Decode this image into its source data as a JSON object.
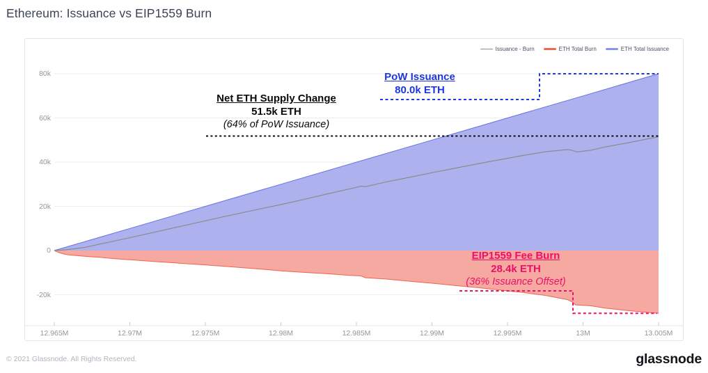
{
  "page": {
    "title": "Ethereum: Issuance vs EIP1559 Burn",
    "footer_copyright": "© 2021 Glassnode. All Rights Reserved.",
    "brand": "glassnode"
  },
  "legend": {
    "position": "top-right",
    "items": [
      {
        "label": "Issuance - Burn",
        "color": "#8b8b8b",
        "thickness": 1
      },
      {
        "label": "ETH Total Burn",
        "color": "#f4664f",
        "thickness": 3
      },
      {
        "label": "ETH Total Issuance",
        "color": "#8a93ee",
        "thickness": 3
      }
    ]
  },
  "annotations": {
    "pow": {
      "title": "PoW Issuance",
      "value": "80.0k ETH",
      "note": "",
      "color": "#1b36e2",
      "level_k_eth": 80.0
    },
    "net": {
      "title": "Net ETH Supply Change",
      "value": "51.5k ETH",
      "note": "(64% of PoW Issuance)",
      "color": "#0a0a0a",
      "level_k_eth": 51.5
    },
    "burn": {
      "title": "EIP1559 Fee Burn",
      "value": "28.4k ETH",
      "note": "(36% Issuance Offset)",
      "color": "#ee0f68",
      "level_k_eth": -28.4
    }
  },
  "chart_data": {
    "type": "area",
    "title": "Ethereum: Issuance vs EIP1559 Burn",
    "xlabel": "",
    "ylabel": "",
    "grid": "horizontal",
    "legend_position": "top-right",
    "x_axis": {
      "tick_labels": [
        "12.965M",
        "12.97M",
        "12.975M",
        "12.98M",
        "12.985M",
        "12.99M",
        "12.995M",
        "13M",
        "13.005M"
      ],
      "tick_values": [
        12.965,
        12.97,
        12.975,
        12.98,
        12.985,
        12.99,
        12.995,
        13.0,
        13.005
      ],
      "range": [
        12.965,
        13.005
      ]
    },
    "y_axis": {
      "tick_labels": [
        "80k",
        "60k",
        "40k",
        "20k",
        "0",
        "-20k"
      ],
      "tick_values": [
        80,
        60,
        40,
        20,
        0,
        -20
      ],
      "range": [
        -34,
        91
      ],
      "unit": "k ETH"
    },
    "series": [
      {
        "name": "ETH Total Issuance",
        "type": "area",
        "line_color": "#6672e4",
        "fill_color": "#adb2ef",
        "points": [
          [
            12.965,
            0
          ],
          [
            12.97,
            10
          ],
          [
            12.975,
            20
          ],
          [
            12.98,
            30
          ],
          [
            12.985,
            40
          ],
          [
            12.99,
            50
          ],
          [
            12.995,
            60
          ],
          [
            13.0,
            70
          ],
          [
            13.005,
            80
          ]
        ]
      },
      {
        "name": "ETH Total Burn",
        "type": "area",
        "line_color": "#ee6450",
        "fill_color": "#f6a9a0",
        "points": [
          [
            12.965,
            0
          ],
          [
            12.9653,
            -0.9
          ],
          [
            12.9657,
            -1.7
          ],
          [
            12.966,
            -2.0
          ],
          [
            12.967,
            -2.6
          ],
          [
            12.968,
            -3.1
          ],
          [
            12.969,
            -3.7
          ],
          [
            12.97,
            -4.2
          ],
          [
            12.9715,
            -4.9
          ],
          [
            12.973,
            -5.6
          ],
          [
            12.9745,
            -6.3
          ],
          [
            12.976,
            -7.0
          ],
          [
            12.9775,
            -7.8
          ],
          [
            12.979,
            -8.6
          ],
          [
            12.98,
            -9.2
          ],
          [
            12.9815,
            -9.9
          ],
          [
            12.983,
            -10.5
          ],
          [
            12.9845,
            -11.2
          ],
          [
            12.9853,
            -11.5
          ],
          [
            12.9856,
            -12.3
          ],
          [
            12.987,
            -12.9
          ],
          [
            12.9885,
            -13.9
          ],
          [
            12.99,
            -14.8
          ],
          [
            12.9915,
            -15.8
          ],
          [
            12.993,
            -16.8
          ],
          [
            12.9945,
            -17.9
          ],
          [
            12.996,
            -19.0
          ],
          [
            12.9975,
            -20.3
          ],
          [
            12.999,
            -22.3
          ],
          [
            12.9993,
            -23.3
          ],
          [
            12.9995,
            -24.6
          ],
          [
            13.0005,
            -25.0
          ],
          [
            13.0015,
            -26.1
          ],
          [
            13.003,
            -27.2
          ],
          [
            13.005,
            -28.4
          ]
        ]
      },
      {
        "name": "Issuance - Burn",
        "type": "line",
        "line_color": "#8b8b8b",
        "points": [
          [
            12.965,
            0
          ],
          [
            12.9655,
            0.2
          ],
          [
            12.966,
            0.5
          ],
          [
            12.967,
            1.4
          ],
          [
            12.968,
            2.9
          ],
          [
            12.969,
            4.3
          ],
          [
            12.97,
            5.8
          ],
          [
            12.9715,
            8.1
          ],
          [
            12.973,
            10.4
          ],
          [
            12.9745,
            12.7
          ],
          [
            12.976,
            15.0
          ],
          [
            12.9775,
            17.2
          ],
          [
            12.979,
            19.4
          ],
          [
            12.98,
            20.8
          ],
          [
            12.9815,
            23.1
          ],
          [
            12.983,
            25.5
          ],
          [
            12.9845,
            27.8
          ],
          [
            12.9853,
            29.1
          ],
          [
            12.9856,
            28.9
          ],
          [
            12.987,
            31.1
          ],
          [
            12.9885,
            33.1
          ],
          [
            12.99,
            35.2
          ],
          [
            12.9915,
            37.2
          ],
          [
            12.993,
            39.2
          ],
          [
            12.9945,
            41.1
          ],
          [
            12.996,
            43.0
          ],
          [
            12.9975,
            44.7
          ],
          [
            12.999,
            45.7
          ],
          [
            12.9993,
            45.3
          ],
          [
            12.9996,
            44.6
          ],
          [
            13.0005,
            45.4
          ],
          [
            13.0015,
            46.9
          ],
          [
            13.003,
            48.8
          ],
          [
            13.005,
            51.5
          ]
        ]
      }
    ]
  }
}
